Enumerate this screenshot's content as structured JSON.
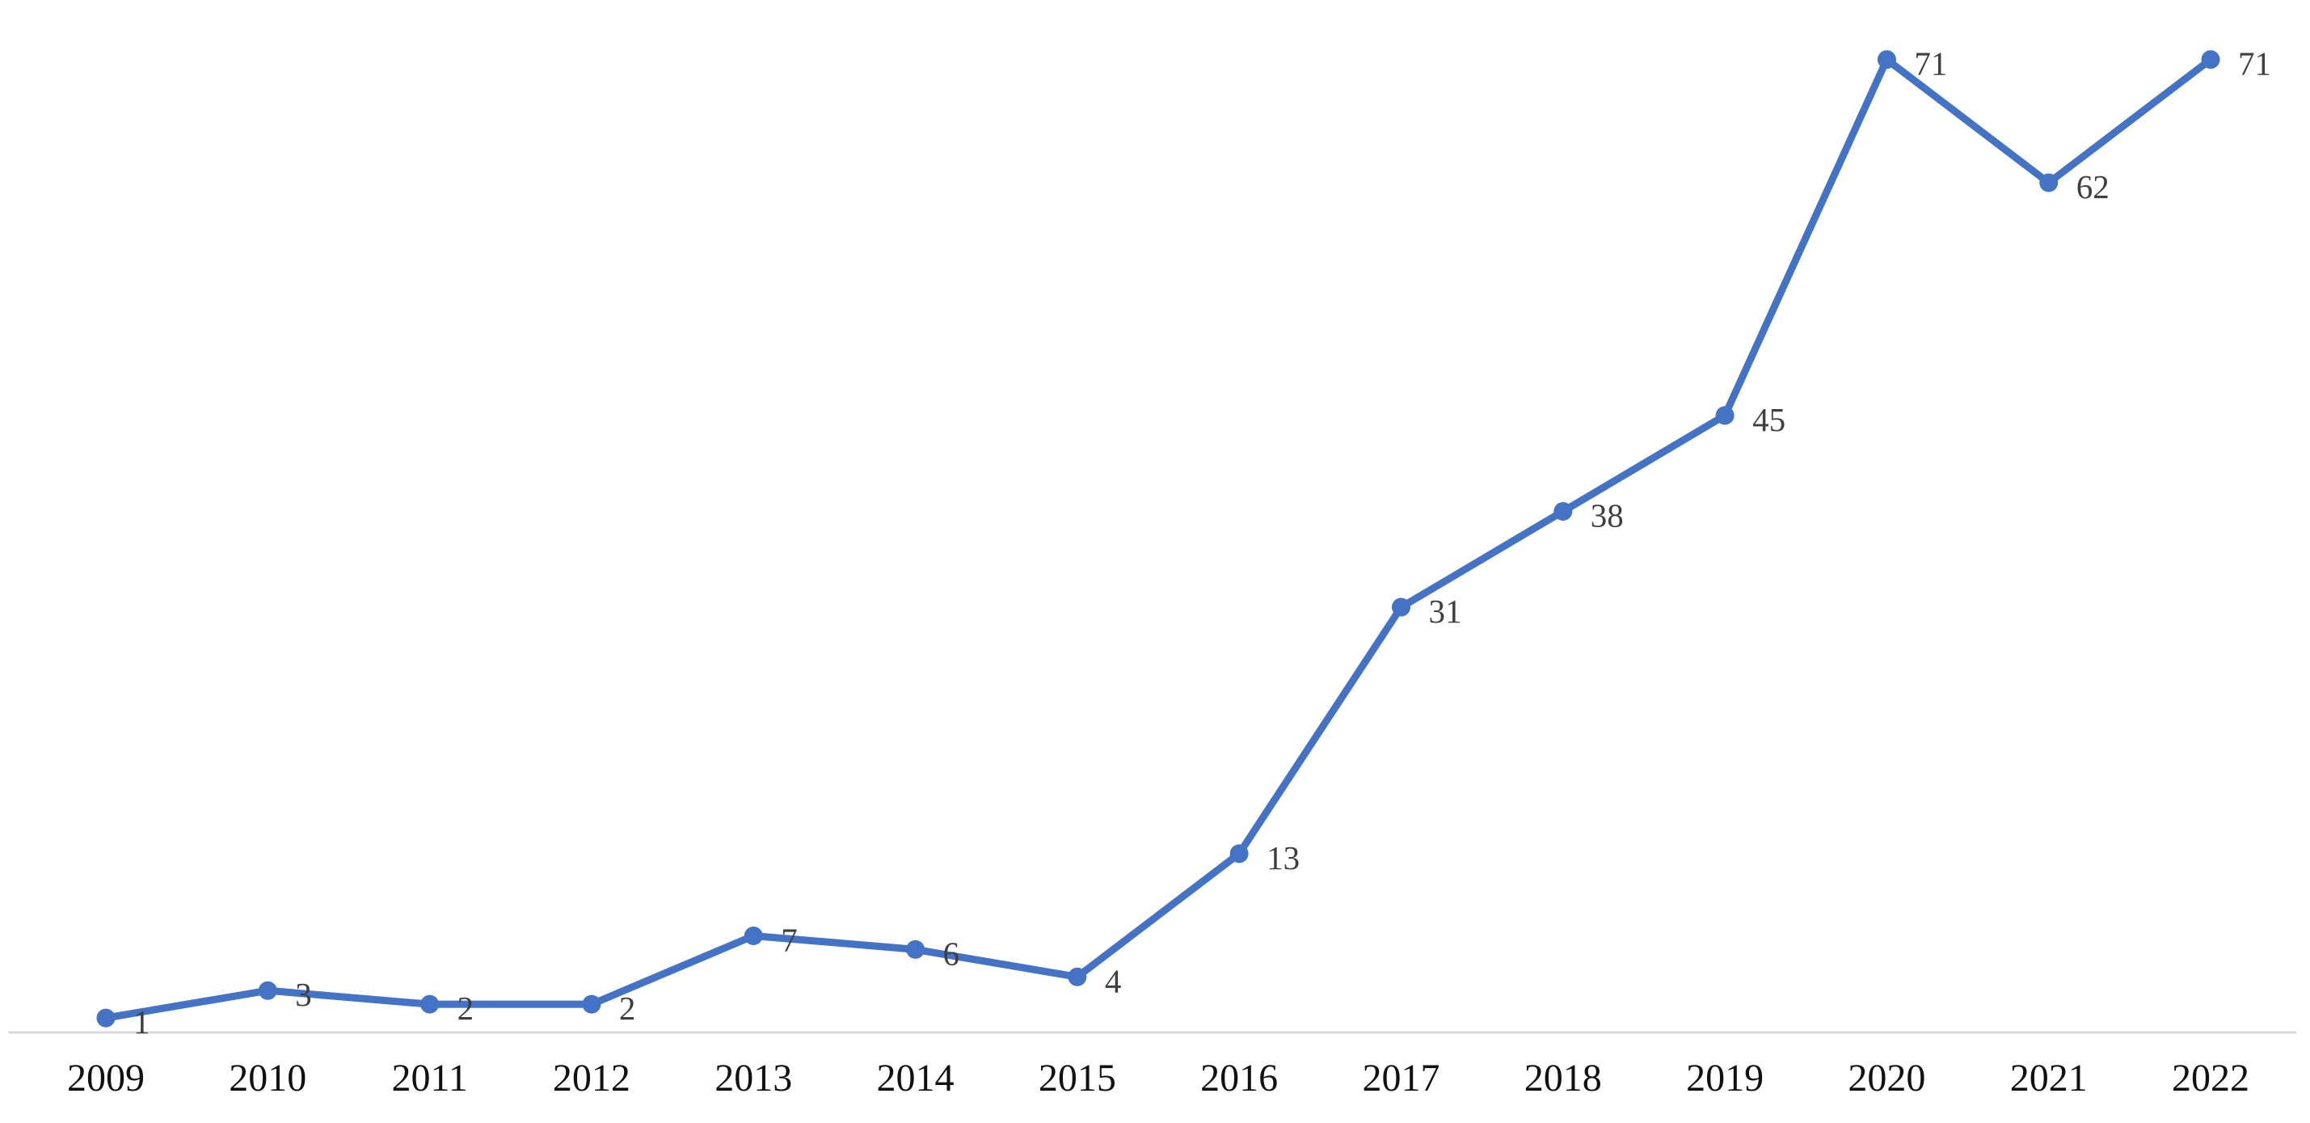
{
  "page": {
    "background_color": "#ffffff"
  },
  "chart_data": {
    "type": "line",
    "title": "",
    "xlabel": "",
    "ylabel": "",
    "categories": [
      "2009",
      "2010",
      "2011",
      "2012",
      "2013",
      "2014",
      "2015",
      "2016",
      "2017",
      "2018",
      "2019",
      "2020",
      "2021",
      "2022"
    ],
    "series": [
      {
        "name": "",
        "values": [
          1,
          3,
          2,
          2,
          7,
          6,
          4,
          13,
          31,
          38,
          45,
          71,
          62,
          71
        ],
        "data_labels": [
          "1",
          "3",
          "2",
          "2",
          "7",
          "6",
          "4",
          "13",
          "31",
          "38",
          "45",
          "71",
          "62",
          "71"
        ],
        "line_color": "#4472C4",
        "marker": "circle",
        "marker_color": "#4472C4"
      }
    ],
    "ylim": [
      0,
      75
    ],
    "grid": false,
    "legend_position": "none",
    "y_axis_visible": false,
    "x_axis_line_color": "#D9D9D9",
    "data_label_color": "#3F3F3F",
    "tick_label_color": "#111111",
    "data_label_position": "right"
  }
}
